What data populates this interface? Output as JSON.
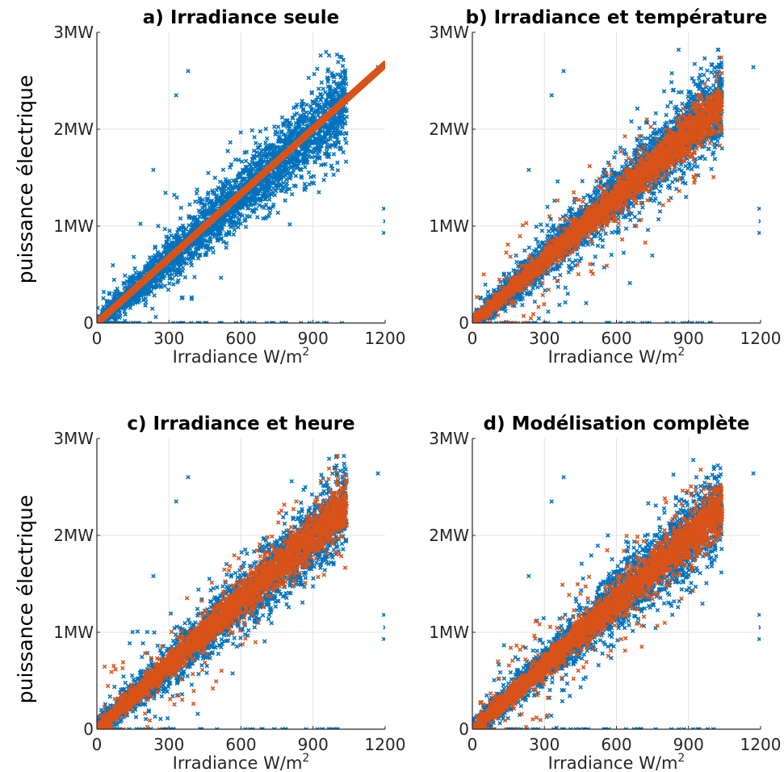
{
  "ylabel": "puissance électrique",
  "colors": {
    "measured": "#0072BD",
    "model": "#D95319",
    "grid": "#e3e3e3",
    "axis": "#262626"
  },
  "chart_data": [
    {
      "type": "scatter",
      "title": "a) Irradiance seule",
      "xlabel": "Irradiance W/m",
      "xlabel_superscript": "2",
      "xlim": [
        0,
        1200
      ],
      "ylim": [
        0,
        3
      ],
      "xticks": [
        0,
        300,
        600,
        900,
        1200
      ],
      "xtick_labels": [
        "0",
        "300",
        "600",
        "900",
        "1200"
      ],
      "yticks": [
        0,
        1,
        2,
        3
      ],
      "ytick_labels": [
        "0",
        "1MW",
        "2MW",
        "3MW"
      ],
      "grid": true,
      "marker": "x",
      "series": [
        {
          "kind": "measured",
          "trend_slope": 2.2,
          "spread": 0.17,
          "color": "#0072BD"
        },
        {
          "kind": "model_line",
          "start": [
            0,
            0
          ],
          "end": [
            1200,
            2.67
          ],
          "color": "#D95319"
        }
      ]
    },
    {
      "type": "scatter",
      "title": "b) Irradiance et température",
      "xlabel": "Irradiance W/m",
      "xlabel_superscript": "2",
      "xlim": [
        0,
        1200
      ],
      "ylim": [
        0,
        3
      ],
      "xticks": [
        0,
        300,
        600,
        900,
        1200
      ],
      "xtick_labels": [
        "0",
        "300",
        "600",
        "900",
        "1200"
      ],
      "yticks": [
        0,
        1,
        2,
        3
      ],
      "ytick_labels": [
        "0",
        "1MW",
        "2MW",
        "3MW"
      ],
      "grid": true,
      "marker": "x",
      "series": [
        {
          "kind": "measured",
          "trend_slope": 2.2,
          "spread": 0.17,
          "color": "#0072BD"
        },
        {
          "kind": "model",
          "trend_slope": 2.17,
          "spread": 0.09,
          "color": "#D95319"
        }
      ]
    },
    {
      "type": "scatter",
      "title": "c) Irradiance et heure",
      "xlabel": "Irradiance W/m",
      "xlabel_superscript": "2",
      "xlim": [
        0,
        1200
      ],
      "ylim": [
        0,
        3
      ],
      "xticks": [
        0,
        300,
        600,
        900,
        1200
      ],
      "xtick_labels": [
        "0",
        "300",
        "600",
        "900",
        "1200"
      ],
      "yticks": [
        0,
        1,
        2,
        3
      ],
      "ytick_labels": [
        "0",
        "1MW",
        "2MW",
        "3MW"
      ],
      "grid": true,
      "marker": "x",
      "series": [
        {
          "kind": "measured",
          "trend_slope": 2.2,
          "spread": 0.17,
          "color": "#0072BD"
        },
        {
          "kind": "model",
          "trend_slope": 2.22,
          "spread": 0.1,
          "color": "#D95319"
        }
      ]
    },
    {
      "type": "scatter",
      "title": "d) Modélisation complète",
      "xlabel": "Irradiance W/m",
      "xlabel_superscript": "2",
      "xlim": [
        0,
        1200
      ],
      "ylim": [
        0,
        3
      ],
      "xticks": [
        0,
        300,
        600,
        900,
        1200
      ],
      "xtick_labels": [
        "0",
        "300",
        "600",
        "900",
        "1200"
      ],
      "yticks": [
        0,
        1,
        2,
        3
      ],
      "ytick_labels": [
        "0",
        "1MW",
        "2MW",
        "3MW"
      ],
      "grid": true,
      "marker": "x",
      "series": [
        {
          "kind": "measured",
          "trend_slope": 2.2,
          "spread": 0.17,
          "color": "#0072BD"
        },
        {
          "kind": "model",
          "trend_slope": 2.2,
          "spread": 0.1,
          "color": "#D95319"
        }
      ]
    }
  ]
}
